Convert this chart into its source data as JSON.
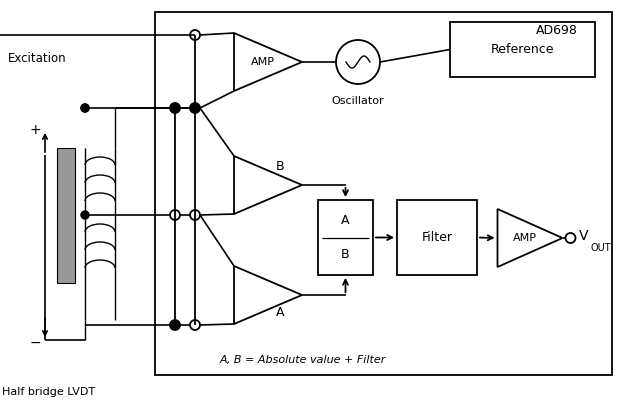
{
  "background_color": "#ffffff",
  "line_color": "#000000",
  "ad698_label": "AD698",
  "reference_label": "Reference",
  "oscillator_label": "Oscillator",
  "excitation_label": "Excitation",
  "half_bridge_label": "Half bridge LVDT",
  "filter_label": "Filter",
  "amp_label": "AMP",
  "note_label": "A, B = Absolute value + Filter",
  "vout_label": "V",
  "vout_sub": "OUT",
  "ab_top": "A",
  "ab_bot": "B",
  "label_B": "B",
  "label_A": "A"
}
